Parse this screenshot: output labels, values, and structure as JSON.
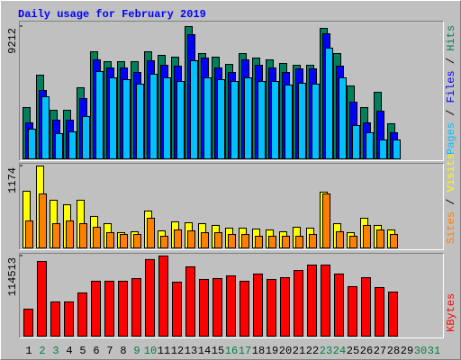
{
  "title": "Daily usage for February 2019",
  "legend_separator": " / ",
  "chart_data": [
    {
      "type": "bar",
      "ylim": [
        0,
        9212
      ],
      "yticks": [
        9212
      ],
      "series": [
        {
          "name": "Hits",
          "color": "#00805c",
          "values": [
            3572,
            5828,
            3384,
            3384,
            4951,
            7457,
            6768,
            6768,
            6768,
            7457,
            7207,
            7081,
            9212,
            7332,
            7081,
            6580,
            7332,
            7019,
            6893,
            6643,
            6517,
            6517,
            9087,
            7332,
            5076,
            3572,
            4637,
            2444,
            null,
            null,
            null
          ]
        },
        {
          "name": "Files",
          "color": "#0000ff",
          "values": [
            2507,
            4763,
            2695,
            2695,
            4199,
            6893,
            6329,
            6329,
            6016,
            6831,
            6517,
            6455,
            8648,
            7019,
            6329,
            6016,
            6893,
            6517,
            6329,
            6016,
            6267,
            6267,
            8710,
            6455,
            3948,
            2507,
            3321,
            1817,
            null,
            null,
            null
          ]
        },
        {
          "name": "Pages",
          "color": "#00c0ff",
          "values": [
            2068,
            4324,
            1755,
            1880,
            2945,
            6079,
            5640,
            5515,
            5201,
            5891,
            5640,
            5389,
            6831,
            5640,
            5515,
            5389,
            5640,
            5389,
            5389,
            5138,
            5264,
            5201,
            7708,
            5640,
            2319,
            1817,
            1316,
            1316,
            null,
            null,
            null
          ]
        }
      ]
    },
    {
      "type": "bar",
      "ylim": [
        0,
        1174
      ],
      "yticks": [
        1174
      ],
      "series": [
        {
          "name": "Visits",
          "color": "#ffff00",
          "values": [
            813,
            1174,
            684,
            619,
            684,
            452,
            348,
            219,
            232,
            529,
            245,
            374,
            361,
            348,
            323,
            284,
            284,
            271,
            258,
            232,
            297,
            284,
            800,
            348,
            219,
            426,
            323,
            258,
            null,
            null,
            null
          ]
        },
        {
          "name": "Sites",
          "color": "#ff8000",
          "values": [
            387,
            774,
            348,
            387,
            348,
            297,
            219,
            193,
            193,
            426,
            168,
            258,
            245,
            219,
            219,
            193,
            193,
            168,
            168,
            168,
            168,
            193,
            774,
            232,
            168,
            323,
            258,
            193,
            null,
            null,
            null
          ]
        }
      ]
    },
    {
      "type": "bar",
      "ylim": [
        0,
        114513
      ],
      "yticks": [
        114513
      ],
      "categories": [
        "1",
        "2",
        "3",
        "4",
        "5",
        "6",
        "7",
        "8",
        "9",
        "10",
        "11",
        "12",
        "13",
        "14",
        "15",
        "16",
        "17",
        "18",
        "19",
        "20",
        "21",
        "22",
        "23",
        "24",
        "25",
        "26",
        "27",
        "28",
        "29",
        "30",
        "31"
      ],
      "category_colors": [
        "#000000",
        "#008040",
        "#008040",
        "#000000",
        "#000000",
        "#000000",
        "#000000",
        "#000000",
        "#008040",
        "#008040",
        "#000000",
        "#000000",
        "#000000",
        "#000000",
        "#000000",
        "#008040",
        "#008040",
        "#000000",
        "#000000",
        "#000000",
        "#000000",
        "#000000",
        "#008040",
        "#008040",
        "#000000",
        "#000000",
        "#000000",
        "#000000",
        "#000000",
        "#008040",
        "#008040"
      ],
      "series": [
        {
          "name": "KBytes",
          "color": "#ff0000",
          "values": [
            38600,
            106800,
            48900,
            48900,
            61800,
            78500,
            78500,
            78500,
            82300,
            109500,
            114513,
            77200,
            99100,
            81100,
            82300,
            86200,
            78500,
            88800,
            81100,
            83600,
            93900,
            101600,
            101600,
            88800,
            70800,
            83600,
            69500,
            63000,
            null,
            null,
            null
          ]
        }
      ]
    }
  ]
}
